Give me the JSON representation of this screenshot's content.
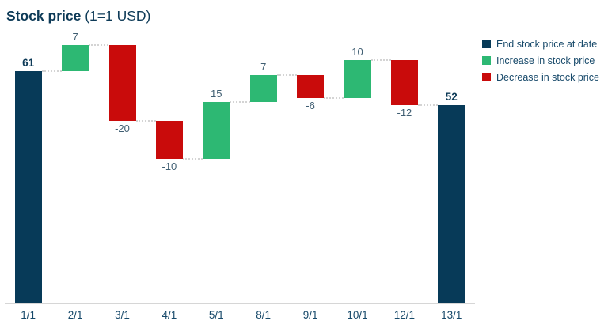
{
  "title": {
    "main": "Stock price",
    "suffix": " (1=1 USD)"
  },
  "legend": {
    "position": "right",
    "items": [
      {
        "label": "End stock price at date",
        "color": "#073a58"
      },
      {
        "label": "Increase in stock price",
        "color": "#2db873"
      },
      {
        "label": "Decrease in stock price",
        "color": "#c90b0b"
      }
    ]
  },
  "colors": {
    "total": "#073a58",
    "increase": "#2db873",
    "decrease": "#c90b0b",
    "connector": "#d4d4d4",
    "axis_line": "#d6d6d6",
    "value_label": "#3f5e72",
    "total_value_label": "#0d3a57",
    "axis_label": "#17496a",
    "title_text": "#0d3a57",
    "background": "#ffffff"
  },
  "chart_data": {
    "type": "bar",
    "subtype": "waterfall",
    "title": "Stock price (1=1 USD)",
    "categories": [
      "1/1",
      "2/1",
      "3/1",
      "4/1",
      "5/1",
      "8/1",
      "9/1",
      "10/1",
      "12/1",
      "13/1"
    ],
    "bars": [
      {
        "category": "1/1",
        "label": "61",
        "value": 61,
        "kind": "total"
      },
      {
        "category": "2/1",
        "label": "7",
        "value": 7,
        "kind": "increase"
      },
      {
        "category": "3/1",
        "label": "-20",
        "value": -20,
        "kind": "decrease"
      },
      {
        "category": "4/1",
        "label": "-10",
        "value": -10,
        "kind": "decrease"
      },
      {
        "category": "5/1",
        "label": "15",
        "value": 15,
        "kind": "increase"
      },
      {
        "category": "8/1",
        "label": "7",
        "value": 7,
        "kind": "increase"
      },
      {
        "category": "9/1",
        "label": "-6",
        "value": -6,
        "kind": "decrease"
      },
      {
        "category": "10/1",
        "label": "10",
        "value": 10,
        "kind": "increase"
      },
      {
        "category": "12/1",
        "label": "-12",
        "value": -12,
        "kind": "decrease"
      },
      {
        "category": "13/1",
        "label": "52",
        "value": 52,
        "kind": "total"
      }
    ],
    "running_totals": [
      61,
      68,
      48,
      38,
      53,
      60,
      54,
      64,
      52,
      52
    ],
    "start_value": 61,
    "end_value": 52,
    "y_axis": {
      "min": 0,
      "visible": false,
      "gridlines": false
    },
    "connector_style": "dotted",
    "legend_position": "right"
  }
}
